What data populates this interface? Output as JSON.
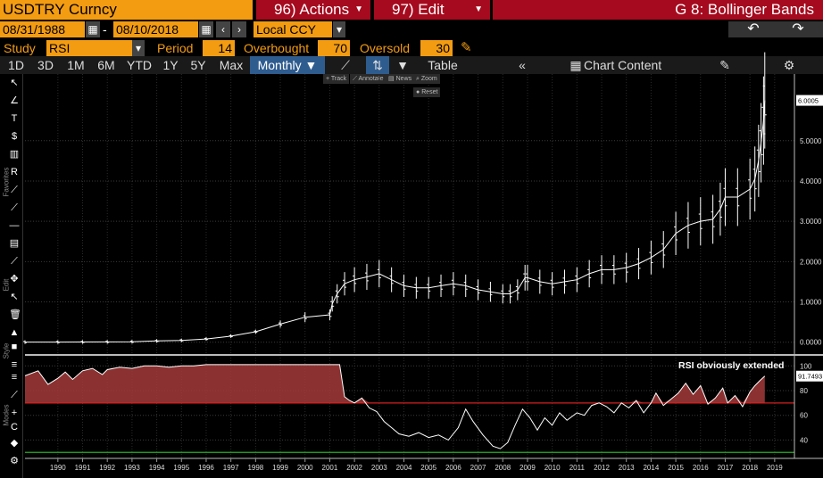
{
  "header": {
    "security": "USDTRY Curncy",
    "actions_label": "96) Actions",
    "edit_label": "97) Edit",
    "function_title": "G 8: Bollinger Bands"
  },
  "dates": {
    "start": "08/31/1988",
    "separator": "-",
    "end": "08/10/2018",
    "currency": "Local CCY"
  },
  "study": {
    "study_label": "Study",
    "study_value": "RSI",
    "period_label": "Period",
    "period_value": "14",
    "overbought_label": "Overbought",
    "overbought_value": "70",
    "oversold_label": "Oversold",
    "oversold_value": "30"
  },
  "toolbar": {
    "ranges": [
      "1D",
      "3D",
      "1M",
      "6M",
      "YTD",
      "1Y",
      "5Y",
      "Max"
    ],
    "frequency": "Monthly ▼",
    "table_label": "Table",
    "chart_content_label": "Chart Content"
  },
  "chips": {
    "track": "Track",
    "annotate": "Annotate",
    "news": "News",
    "zoom": "Zoom",
    "reset": "Reset"
  },
  "side_labels": {
    "favorites": "Favorites",
    "edit": "Edit",
    "style": "Style",
    "modes": "Modes"
  },
  "icons": {
    "calendar": "calendar-icon",
    "undo": "undo-icon",
    "redo": "redo-icon",
    "pencil": "pencil-icon",
    "settings": "gear-icon"
  },
  "colors": {
    "bloomberg_orange": "#f39c12",
    "menu_red": "#a50a1e",
    "rsi_fill": "#a33a3a",
    "overbought_line": "#d42020",
    "oversold_line": "#20b020",
    "active_tab": "#2f5c8f"
  },
  "chart_data": [
    {
      "type": "line",
      "title": "",
      "series": [
        {
          "name": "",
          "x": [
            1988.67,
            1990,
            1991,
            1992,
            1993,
            1994,
            1995,
            1996,
            1997,
            1998,
            1999,
            2000,
            2001.0,
            2001.1,
            2001.3,
            2001.6,
            2002,
            2002.5,
            2003,
            2003.5,
            2004,
            2004.5,
            2005,
            2005.5,
            2006,
            2006.5,
            2007,
            2007.5,
            2008.0,
            2008.3,
            2008.6,
            2008.9,
            2009,
            2009.5,
            2010,
            2010.5,
            2011,
            2011.5,
            2012,
            2012.5,
            2013,
            2013.5,
            2014,
            2014.5,
            2015,
            2015.5,
            2016,
            2016.5,
            2016.8,
            2017,
            2017.5,
            2018,
            2018.2,
            2018.35,
            2018.45,
            2018.55,
            2018.6
          ],
          "values": [
            0.002,
            0.003,
            0.005,
            0.007,
            0.011,
            0.03,
            0.045,
            0.08,
            0.15,
            0.26,
            0.45,
            0.62,
            0.68,
            0.95,
            1.2,
            1.45,
            1.55,
            1.62,
            1.7,
            1.55,
            1.4,
            1.35,
            1.35,
            1.4,
            1.45,
            1.4,
            1.3,
            1.25,
            1.2,
            1.2,
            1.3,
            1.6,
            1.6,
            1.5,
            1.45,
            1.5,
            1.55,
            1.7,
            1.8,
            1.8,
            1.85,
            1.95,
            2.1,
            2.3,
            2.7,
            2.9,
            3.0,
            3.05,
            3.3,
            3.6,
            3.6,
            3.8,
            4.05,
            4.5,
            4.95,
            5.5,
            6.0005
          ]
        }
      ],
      "ylim": [
        -0.25,
        6.5
      ],
      "y_ticks": [
        "0.0000",
        "1.0000",
        "2.0000",
        "3.0000",
        "4.0000",
        "5.0000"
      ],
      "last_value_label": "6.0005",
      "grid": true
    },
    {
      "type": "area",
      "title": "",
      "series": [
        {
          "name": "",
          "x": [
            1988.67,
            1989.2,
            1989.6,
            1990,
            1990.3,
            1990.6,
            1991,
            1991.4,
            1991.8,
            1992,
            1992.5,
            1993,
            1993.5,
            1994,
            1994.5,
            1995,
            1995.5,
            1996,
            1997,
            1998,
            1999,
            2000,
            2001.0,
            2001.4,
            2001.6,
            2001.8,
            2002,
            2002.3,
            2002.6,
            2002.9,
            2003.2,
            2003.5,
            2003.8,
            2004.2,
            2004.6,
            2005,
            2005.4,
            2005.8,
            2006.2,
            2006.5,
            2006.8,
            2007.2,
            2007.6,
            2007.9,
            2008.2,
            2008.5,
            2008.8,
            2009.1,
            2009.4,
            2009.7,
            2010,
            2010.3,
            2010.6,
            2011,
            2011.3,
            2011.6,
            2011.9,
            2012.2,
            2012.5,
            2012.8,
            2013.1,
            2013.4,
            2013.7,
            2014,
            2014.2,
            2014.5,
            2014.8,
            2015.1,
            2015.4,
            2015.7,
            2016.0,
            2016.3,
            2016.6,
            2016.9,
            2017.1,
            2017.4,
            2017.7,
            2018.0,
            2018.2,
            2018.4,
            2018.6
          ],
          "values": [
            92,
            96,
            85,
            90,
            95,
            89,
            96,
            98,
            93,
            97,
            99,
            98,
            100,
            100,
            99,
            100,
            100,
            101,
            101,
            101,
            101,
            101,
            101,
            101,
            75,
            72,
            70,
            74,
            66,
            63,
            55,
            50,
            45,
            43,
            46,
            42,
            44,
            40,
            50,
            65,
            55,
            44,
            35,
            33,
            38,
            52,
            65,
            58,
            48,
            58,
            52,
            62,
            56,
            62,
            60,
            68,
            70,
            67,
            62,
            70,
            66,
            72,
            62,
            70,
            78,
            68,
            73,
            78,
            86,
            77,
            84,
            69,
            74,
            82,
            70,
            76,
            67,
            79,
            84,
            88,
            91.7493
          ]
        }
      ],
      "ylim": [
        28,
        106
      ],
      "y_ticks": [
        "40",
        "60",
        "80",
        "100"
      ],
      "last_value_label": "91.7493",
      "overbought": 70,
      "oversold": 30,
      "annotation": "RSI obviously extended"
    }
  ],
  "x_axis_labels": [
    "1990",
    "1991",
    "1992",
    "1993",
    "1994",
    "1995",
    "1996",
    "1997",
    "1998",
    "1999",
    "2000",
    "2001",
    "2002",
    "2003",
    "2004",
    "2005",
    "2006",
    "2007",
    "2008",
    "2009",
    "2010",
    "2011",
    "2012",
    "2013",
    "2014",
    "2015",
    "2016",
    "2017",
    "2018",
    "2019"
  ]
}
